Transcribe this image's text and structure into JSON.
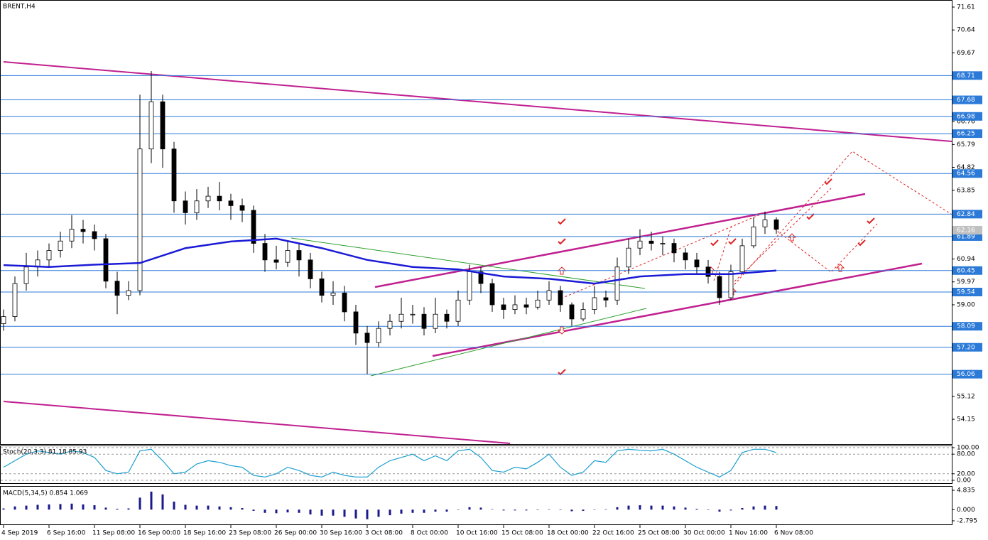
{
  "chart_data": [
    {
      "type": "candlestick",
      "title": "BRENT,H4",
      "open": [
        58.2,
        58.5,
        59.9,
        60.6,
        60.9,
        61.3,
        61.7,
        62.2,
        62.1,
        61.8,
        60.0,
        59.4,
        59.6,
        65.6,
        67.6,
        65.6,
        63.4,
        62.9,
        63.4,
        63.6,
        63.4,
        63.2,
        63.0,
        61.6,
        60.9,
        60.8,
        61.3,
        60.9,
        60.1,
        59.4,
        59.5,
        58.7,
        57.8,
        57.4,
        58.0,
        58.3,
        58.6,
        58.6,
        58.0,
        58.6,
        58.3,
        59.2,
        60.4,
        59.9,
        59.0,
        58.8,
        59.0,
        58.9,
        59.2,
        59.6,
        59.0,
        58.4,
        58.8,
        59.3,
        59.2,
        60.6,
        61.4,
        61.7,
        61.6,
        61.6,
        61.2,
        60.9,
        60.6,
        60.2,
        59.3,
        60.4,
        61.5,
        62.3,
        62.6
      ],
      "high": [
        58.8,
        60.2,
        61.2,
        61.3,
        61.6,
        62.1,
        62.8,
        62.6,
        62.4,
        62.0,
        60.4,
        60.0,
        67.9,
        68.9,
        67.9,
        65.9,
        63.8,
        63.9,
        64.0,
        64.2,
        63.7,
        63.5,
        63.2,
        62.0,
        61.5,
        61.7,
        61.6,
        61.2,
        60.4,
        60.0,
        59.8,
        59.0,
        58.1,
        58.3,
        58.6,
        59.3,
        59.0,
        58.9,
        59.3,
        58.8,
        59.6,
        60.7,
        60.6,
        60.1,
        59.3,
        59.4,
        59.3,
        59.6,
        60.0,
        59.8,
        59.1,
        59.1,
        59.8,
        59.6,
        61.0,
        61.8,
        62.2,
        62.1,
        61.9,
        61.8,
        61.4,
        61.2,
        60.9,
        60.4,
        60.7,
        61.8,
        62.7,
        62.95,
        62.7
      ],
      "low": [
        57.9,
        58.3,
        59.6,
        60.2,
        60.6,
        61.0,
        61.4,
        61.6,
        61.3,
        59.7,
        58.6,
        59.2,
        59.4,
        65.0,
        64.8,
        62.9,
        62.4,
        62.6,
        63.1,
        63.0,
        62.6,
        62.5,
        61.2,
        60.4,
        60.5,
        60.6,
        60.2,
        59.7,
        59.1,
        59.0,
        58.3,
        57.3,
        56.06,
        57.2,
        57.7,
        58.0,
        58.2,
        57.7,
        57.8,
        58.0,
        58.1,
        59.0,
        59.5,
        58.7,
        58.4,
        58.6,
        58.6,
        58.8,
        59.0,
        58.7,
        58.1,
        58.3,
        58.6,
        58.9,
        59.0,
        60.3,
        61.1,
        61.3,
        61.1,
        60.8,
        60.5,
        60.3,
        59.9,
        59.0,
        59.2,
        60.3,
        61.4,
        62.0,
        62.0
      ],
      "close": [
        58.5,
        59.9,
        60.6,
        60.9,
        61.3,
        61.7,
        62.2,
        62.1,
        61.8,
        60.0,
        59.4,
        59.6,
        65.6,
        67.6,
        65.6,
        63.4,
        62.9,
        63.4,
        63.6,
        63.4,
        63.2,
        63.0,
        61.6,
        60.9,
        60.8,
        61.3,
        60.9,
        60.1,
        59.4,
        59.5,
        58.7,
        57.8,
        57.4,
        58.0,
        58.3,
        58.6,
        58.6,
        58.0,
        58.6,
        58.3,
        59.2,
        60.4,
        59.9,
        59.0,
        58.8,
        59.0,
        58.9,
        59.2,
        59.6,
        59.0,
        58.4,
        58.8,
        59.3,
        59.2,
        60.6,
        61.4,
        61.7,
        61.6,
        61.6,
        61.2,
        60.9,
        60.6,
        60.2,
        59.3,
        60.4,
        61.5,
        62.3,
        62.6,
        62.2
      ],
      "ma": {
        "color": "#1a1ad6",
        "x": [
          0,
          4,
          8,
          12,
          16,
          20,
          24,
          28,
          32,
          36,
          40,
          44,
          48,
          52,
          56,
          60,
          64,
          68
        ],
        "values": [
          60.68,
          60.6,
          60.7,
          60.77,
          61.4,
          61.68,
          61.8,
          61.4,
          60.9,
          60.6,
          60.5,
          60.2,
          60.1,
          59.9,
          60.2,
          60.3,
          60.3,
          60.45
        ]
      },
      "levels": [
        68.71,
        67.68,
        66.98,
        66.25,
        64.56,
        62.84,
        61.89,
        60.45,
        59.54,
        58.09,
        {
          "value": 57.2,
          "label": "57.20"
        },
        56.06
      ],
      "level_color": "#2b7ad8",
      "current": 62.16,
      "xlim": [
        -0.3125,
        83.4375
      ],
      "ylim": [
        53.1,
        71.91
      ],
      "yticks": [
        71.61,
        70.64,
        69.67,
        66.76,
        65.79,
        64.82,
        63.85,
        60.94,
        59.97,
        {
          "value": 59,
          "label": "59.00"
        },
        55.12,
        54.15
      ],
      "xticks": [
        {
          "value": 0,
          "label": "4 Sep 2019"
        },
        {
          "value": 4,
          "label": "6 Sep 16:00"
        },
        {
          "value": 8,
          "label": "11 Sep 08:00"
        },
        {
          "value": 12,
          "label": "16 Sep 00:00"
        },
        {
          "value": 16,
          "label": "18 Sep 16:00"
        },
        {
          "value": 20,
          "label": "23 Sep 08:00"
        },
        {
          "value": 24,
          "label": "26 Sep 00:00"
        },
        {
          "value": 28,
          "label": "30 Sep 16:00"
        },
        {
          "value": 32,
          "label": "3 Oct 08:00"
        },
        {
          "value": 36,
          "label": "8 Oct 00:00"
        },
        {
          "value": 40,
          "label": "10 Oct 16:00"
        },
        {
          "value": 44,
          "label": "15 Oct 08:00"
        },
        {
          "value": 48,
          "label": "18 Oct 00:00"
        },
        {
          "value": 52,
          "label": "22 Oct 16:00"
        },
        {
          "value": 56,
          "label": "25 Oct 08:00"
        },
        {
          "value": 60,
          "label": "30 Oct 00:00"
        },
        {
          "value": 64,
          "label": "1 Nov 16:00"
        },
        {
          "value": 68,
          "label": "6 Nov 08:00"
        }
      ]
    },
    {
      "type": "line",
      "title": "Stoch(20,3,3) 81.18 85.93",
      "series": [
        {
          "color": "#1c9fd0",
          "values": [
            40,
            60,
            80,
            90,
            85,
            80,
            90,
            85,
            70,
            30,
            20,
            25,
            90,
            95,
            60,
            20,
            25,
            50,
            60,
            55,
            45,
            40,
            15,
            10,
            20,
            40,
            30,
            15,
            10,
            25,
            15,
            10,
            10,
            40,
            60,
            70,
            80,
            60,
            75,
            60,
            90,
            95,
            70,
            30,
            25,
            40,
            35,
            55,
            80,
            40,
            15,
            25,
            60,
            55,
            90,
            95,
            92,
            90,
            95,
            80,
            60,
            40,
            25,
            10,
            30,
            85,
            95,
            95,
            85
          ]
        }
      ],
      "ylim": [
        -8.7,
        106.5
      ],
      "grid": true,
      "yticks": [
        {
          "value": 100,
          "label": "100.00"
        },
        {
          "value": 80,
          "label": "80.00"
        },
        {
          "value": 20,
          "label": "20.00"
        },
        {
          "value": 0,
          "label": "0.00"
        }
      ]
    },
    {
      "type": "bar",
      "title": "MACD(5,34,5) 0.854 1.069",
      "color": "#1a1a8c",
      "values": [
        0.3,
        0.8,
        1.0,
        1.2,
        1.3,
        1.4,
        1.5,
        1.3,
        1.1,
        0.5,
        0.2,
        0.3,
        3.0,
        4.5,
        3.8,
        2.0,
        1.2,
        1.0,
        1.0,
        0.8,
        0.6,
        0.4,
        -0.3,
        -0.8,
        -0.9,
        -0.7,
        -0.8,
        -1.2,
        -1.5,
        -1.5,
        -1.8,
        -2.2,
        -2.4,
        -1.8,
        -1.4,
        -1.0,
        -0.8,
        -0.8,
        -0.5,
        -0.5,
        0.0,
        0.6,
        0.5,
        0.1,
        -0.2,
        -0.2,
        -0.2,
        -0.1,
        0.1,
        -0.1,
        -0.4,
        -0.3,
        0.0,
        0.1,
        0.6,
        1.0,
        1.1,
        1.0,
        1.0,
        0.8,
        0.5,
        0.2,
        -0.1,
        -0.5,
        -0.2,
        0.4,
        0.8,
        1.0,
        0.9
      ],
      "ylim": [
        -3.68,
        5.72
      ],
      "yticks": [
        4.835,
        {
          "value": 0,
          "label": "0.000"
        },
        -2.795
      ]
    }
  ]
}
